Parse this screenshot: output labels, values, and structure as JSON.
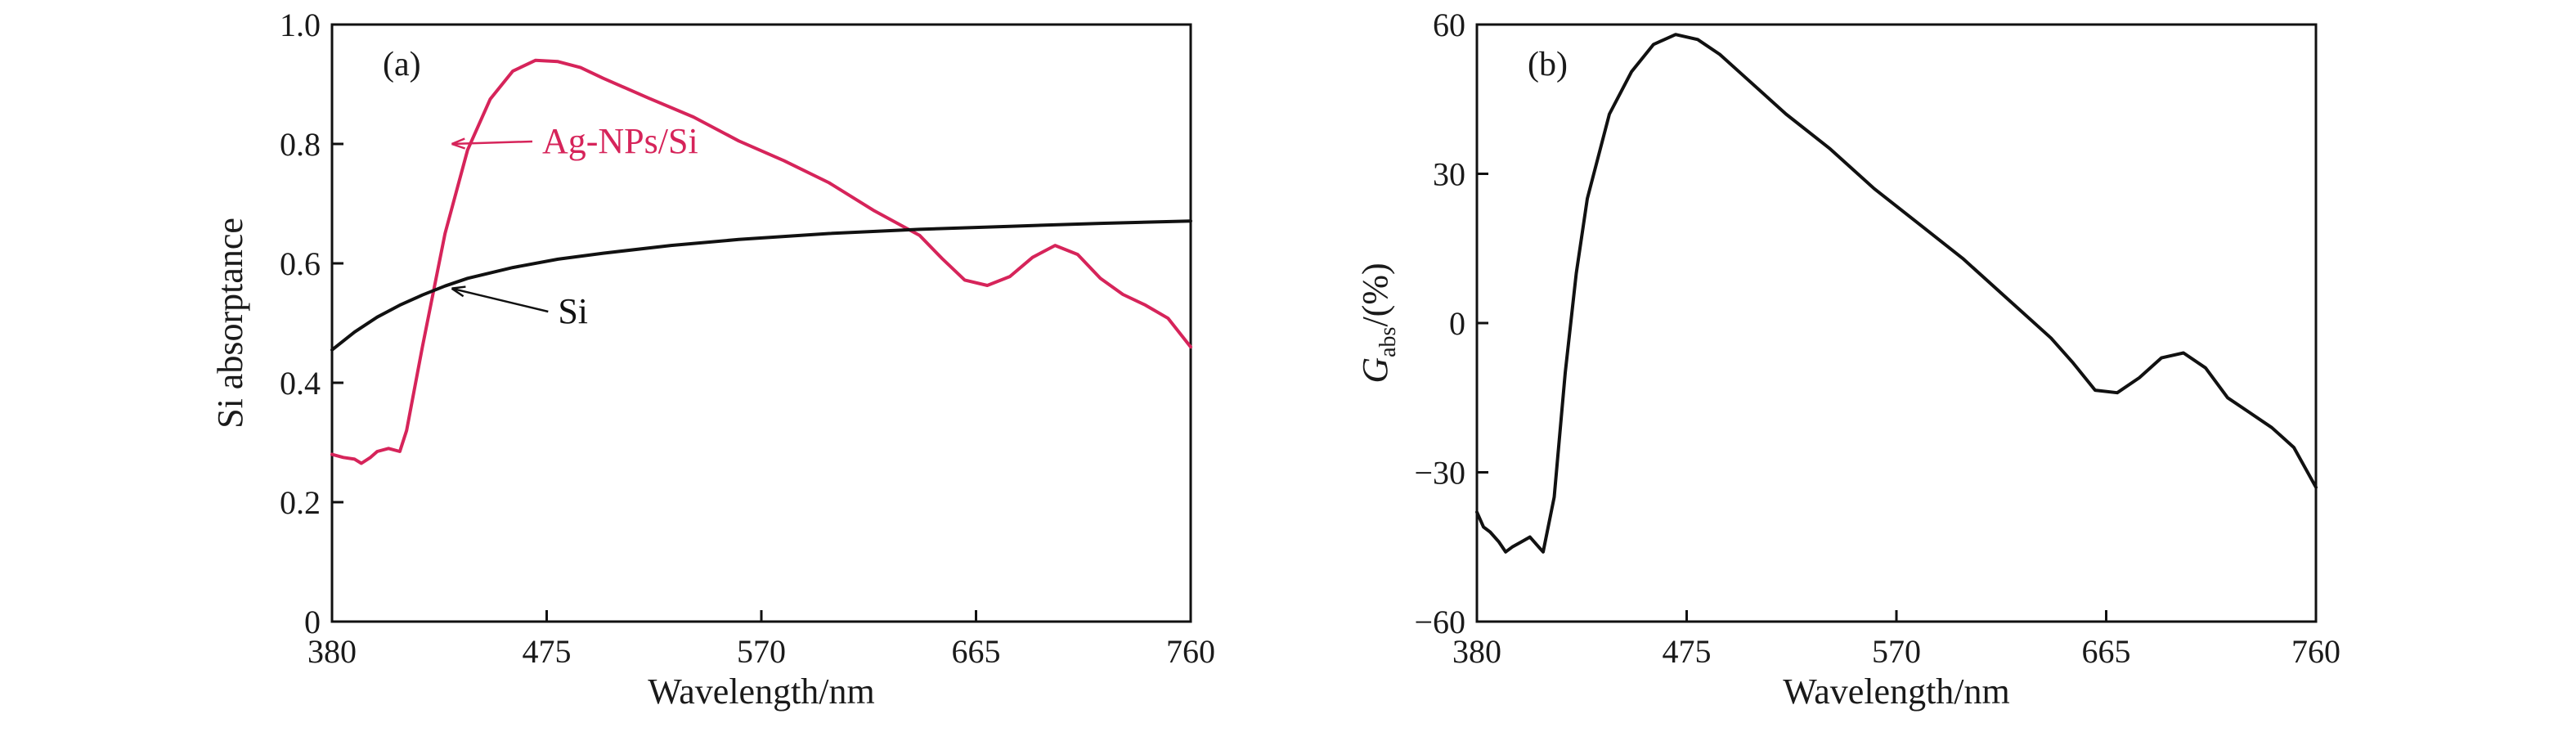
{
  "chart_data": [
    {
      "type": "line",
      "panel_label": "(a)",
      "title": "",
      "xlabel": "Wavelength/nm",
      "ylabel": "Si absorptance",
      "xlim": [
        380,
        760
      ],
      "ylim": [
        0,
        1.0
      ],
      "x_ticks": [
        "380",
        "475",
        "570",
        "665",
        "760"
      ],
      "y_ticks": [
        "0",
        "0.2",
        "0.4",
        "0.6",
        "0.8",
        "1.0"
      ],
      "grid": false,
      "series": [
        {
          "name": "Ag-NPs/Si",
          "color": "#d6245a",
          "points": [
            [
              380,
              0.28
            ],
            [
              385,
              0.275
            ],
            [
              390,
              0.272
            ],
            [
              393,
              0.265
            ],
            [
              397,
              0.275
            ],
            [
              400,
              0.285
            ],
            [
              405,
              0.29
            ],
            [
              410,
              0.285
            ],
            [
              413,
              0.32
            ],
            [
              420,
              0.46
            ],
            [
              430,
              0.65
            ],
            [
              440,
              0.79
            ],
            [
              450,
              0.875
            ],
            [
              460,
              0.922
            ],
            [
              470,
              0.94
            ],
            [
              480,
              0.938
            ],
            [
              490,
              0.928
            ],
            [
              500,
              0.91
            ],
            [
              520,
              0.877
            ],
            [
              540,
              0.845
            ],
            [
              560,
              0.805
            ],
            [
              580,
              0.772
            ],
            [
              600,
              0.735
            ],
            [
              620,
              0.688
            ],
            [
              640,
              0.647
            ],
            [
              650,
              0.608
            ],
            [
              660,
              0.572
            ],
            [
              670,
              0.563
            ],
            [
              680,
              0.578
            ],
            [
              690,
              0.61
            ],
            [
              700,
              0.63
            ],
            [
              710,
              0.615
            ],
            [
              720,
              0.575
            ],
            [
              730,
              0.548
            ],
            [
              740,
              0.53
            ],
            [
              750,
              0.508
            ],
            [
              760,
              0.46
            ]
          ]
        },
        {
          "name": "Si",
          "color": "#111111",
          "points": [
            [
              380,
              0.455
            ],
            [
              390,
              0.485
            ],
            [
              400,
              0.51
            ],
            [
              410,
              0.53
            ],
            [
              420,
              0.547
            ],
            [
              430,
              0.562
            ],
            [
              440,
              0.575
            ],
            [
              460,
              0.593
            ],
            [
              480,
              0.607
            ],
            [
              500,
              0.617
            ],
            [
              530,
              0.63
            ],
            [
              560,
              0.64
            ],
            [
              600,
              0.65
            ],
            [
              640,
              0.657
            ],
            [
              680,
              0.662
            ],
            [
              720,
              0.667
            ],
            [
              760,
              0.671
            ]
          ]
        }
      ],
      "annotations": [
        {
          "text": "Ag-NPs/Si",
          "target": [
            433,
            0.8
          ],
          "label_at": [
            473,
            0.785
          ],
          "color": "#d6245a"
        },
        {
          "text": "Si",
          "target": [
            433,
            0.558
          ],
          "label_at": [
            480,
            0.5
          ],
          "color": "#111111"
        }
      ]
    },
    {
      "type": "line",
      "panel_label": "(b)",
      "title": "",
      "xlabel": "Wavelength/nm",
      "ylabel_main": "G",
      "ylabel_sub": "abs",
      "ylabel_tail": "/(%)",
      "xlim": [
        380,
        760
      ],
      "ylim": [
        -60,
        60
      ],
      "x_ticks": [
        "380",
        "475",
        "570",
        "665",
        "760"
      ],
      "y_ticks": [
        "−60",
        "−30",
        "0",
        "30",
        "60"
      ],
      "grid": false,
      "series": [
        {
          "name": "",
          "color": "#111111",
          "points": [
            [
              380,
              -38
            ],
            [
              383,
              -41
            ],
            [
              386,
              -42
            ],
            [
              390,
              -44
            ],
            [
              393,
              -46
            ],
            [
              396,
              -45
            ],
            [
              400,
              -44
            ],
            [
              404,
              -43
            ],
            [
              408,
              -45
            ],
            [
              410,
              -46
            ],
            [
              415,
              -35
            ],
            [
              420,
              -10
            ],
            [
              425,
              10
            ],
            [
              430,
              25
            ],
            [
              440,
              42
            ],
            [
              450,
              50.5
            ],
            [
              460,
              56
            ],
            [
              470,
              58
            ],
            [
              480,
              57
            ],
            [
              490,
              54
            ],
            [
              500,
              50
            ],
            [
              520,
              42
            ],
            [
              540,
              35
            ],
            [
              560,
              27
            ],
            [
              580,
              20
            ],
            [
              600,
              13
            ],
            [
              620,
              5
            ],
            [
              640,
              -3
            ],
            [
              650,
              -8
            ],
            [
              660,
              -13.5
            ],
            [
              670,
              -14
            ],
            [
              680,
              -11
            ],
            [
              690,
              -7
            ],
            [
              700,
              -6
            ],
            [
              710,
              -9
            ],
            [
              720,
              -15
            ],
            [
              730,
              -18
            ],
            [
              740,
              -21
            ],
            [
              750,
              -25
            ],
            [
              760,
              -33
            ]
          ]
        }
      ]
    }
  ]
}
